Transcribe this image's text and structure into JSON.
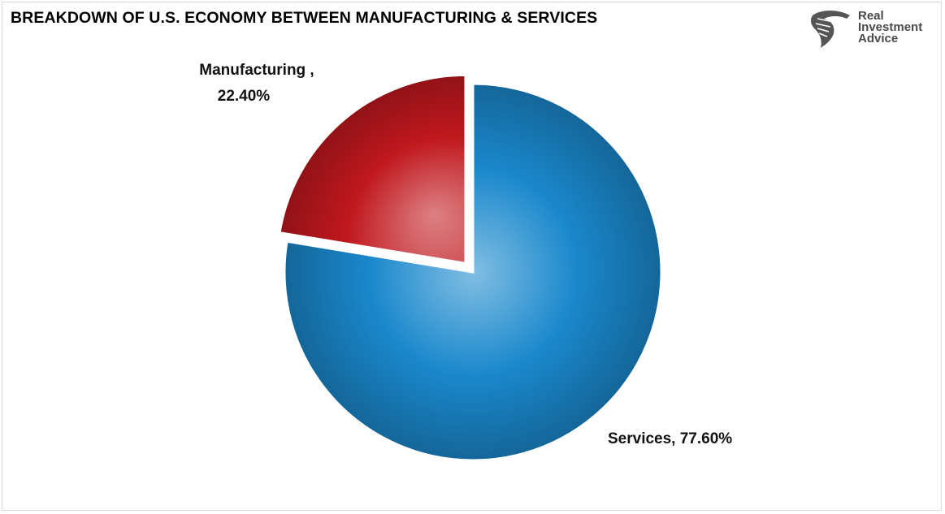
{
  "title": "BREAKDOWN OF U.S. ECONOMY BETWEEN MANUFACTURING & SERVICES",
  "logo": {
    "icon": "eagle-head-icon",
    "line1": "Real",
    "line2": "Investment",
    "line3": "Advice"
  },
  "chart_data": {
    "type": "pie",
    "title": "BREAKDOWN OF U.S. ECONOMY BETWEEN MANUFACTURING & SERVICES",
    "slices": [
      {
        "name": "Services",
        "value": 77.6,
        "label_line1": "Services, 77.60%",
        "label_line2": "",
        "color": "#1a88cc",
        "exploded": false
      },
      {
        "name": "Manufacturing",
        "value": 22.4,
        "label_line1": "Manufacturing ,",
        "label_line2": "22.40%",
        "color": "#c0181e",
        "exploded": true
      }
    ],
    "start": "12 o'clock",
    "direction": "clockwise",
    "legend": "none"
  }
}
